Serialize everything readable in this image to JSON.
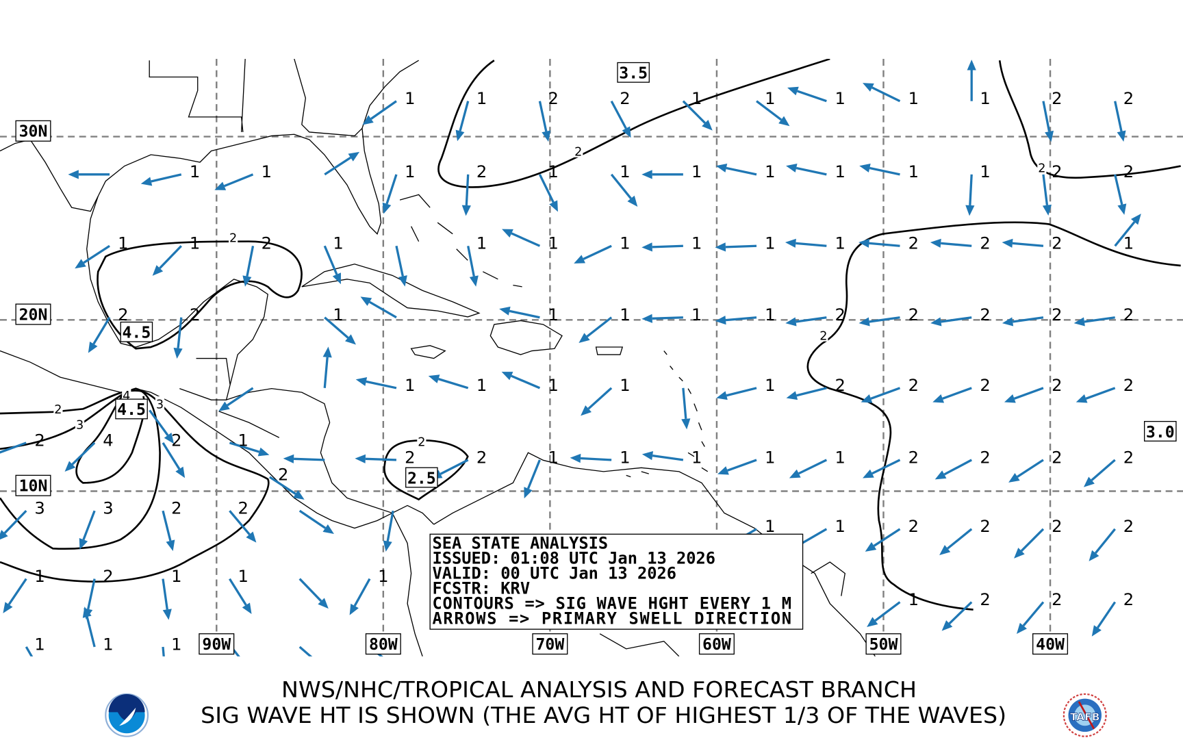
{
  "map": {
    "lon_labels": [
      {
        "lon": -90,
        "text": "90W"
      },
      {
        "lon": -80,
        "text": "80W"
      },
      {
        "lon": -70,
        "text": "70W"
      },
      {
        "lon": -60,
        "text": "60W"
      },
      {
        "lon": -50,
        "text": "50W"
      },
      {
        "lon": -40,
        "text": "40W"
      }
    ],
    "lat_labels": [
      {
        "lat": 30,
        "text": "30N"
      },
      {
        "lat": 20,
        "text": "20N"
      },
      {
        "lat": 10,
        "text": "10N"
      }
    ],
    "contour_boxed_labels": [
      {
        "text": "3.5",
        "lon": -65.0,
        "lat": 33.5
      },
      {
        "text": "4.5",
        "lon": -94.8,
        "lat": 19.3
      },
      {
        "text": "4.5",
        "lon": -95.1,
        "lat": 14.8
      },
      {
        "text": "2.5",
        "lon": -77.7,
        "lat": 10.8
      },
      {
        "text": "3.0",
        "lon": -33.4,
        "lat": 13.5
      }
    ],
    "contour_inline_labels": [
      {
        "text": "2",
        "lon": -68.3,
        "lat": 29.2
      },
      {
        "text": "2",
        "lon": -89.0,
        "lat": 24.5
      },
      {
        "text": "2",
        "lon": -99.5,
        "lat": 14.8
      },
      {
        "text": "3",
        "lon": -98.2,
        "lat": 13.9
      },
      {
        "text": "4",
        "lon": -95.4,
        "lat": 15.6
      },
      {
        "text": "3",
        "lon": -93.4,
        "lat": 15.1
      },
      {
        "text": "2",
        "lon": -40.5,
        "lat": 28.3
      },
      {
        "text": "2",
        "lon": -53.6,
        "lat": 19.1
      },
      {
        "text": "2",
        "lon": -77.7,
        "lat": 12.9
      }
    ],
    "colors": {
      "arrow": "#1f77b4",
      "contour": "#000000",
      "grid": "#808080"
    },
    "wave_points": [
      {
        "lat": 32.1,
        "cells": [
          {
            "lon": -78.4,
            "h": "1",
            "dir": 235
          },
          {
            "lon": -74.1,
            "h": "1",
            "dir": 195
          },
          {
            "lon": -69.8,
            "h": "2",
            "dir": 168
          },
          {
            "lon": -65.5,
            "h": "2",
            "dir": 152
          },
          {
            "lon": -61.2,
            "h": "1",
            "dir": 135
          },
          {
            "lon": -56.8,
            "h": "1",
            "dir": 127
          },
          {
            "lon": -52.6,
            "h": "1",
            "dir": 289
          },
          {
            "lon": -48.2,
            "h": "1",
            "dir": 296
          },
          {
            "lon": -43.9,
            "h": "1",
            "dir": 0
          },
          {
            "lon": -39.6,
            "h": "2",
            "dir": 169
          },
          {
            "lon": -35.3,
            "h": "2",
            "dir": 168
          }
        ]
      },
      {
        "lat": 28.1,
        "cells": [
          {
            "lon": -95.6,
            "h": "",
            "dir": 270
          },
          {
            "lon": -91.3,
            "h": "1",
            "dir": 257
          },
          {
            "lon": -87.0,
            "h": "1",
            "dir": 248
          },
          {
            "lon": -82.7,
            "h": "",
            "dir": 57
          },
          {
            "lon": -78.4,
            "h": "1",
            "dir": 198
          },
          {
            "lon": -74.1,
            "h": "2",
            "dir": 183
          },
          {
            "lon": -69.8,
            "h": "1",
            "dir": 154
          },
          {
            "lon": -65.5,
            "h": "1",
            "dir": 141
          },
          {
            "lon": -61.2,
            "h": "1",
            "dir": 270
          },
          {
            "lon": -56.8,
            "h": "1",
            "dir": 282
          },
          {
            "lon": -52.6,
            "h": "1",
            "dir": 282
          },
          {
            "lon": -48.2,
            "h": "1",
            "dir": 282
          },
          {
            "lon": -43.9,
            "h": "1",
            "dir": 183
          },
          {
            "lon": -39.6,
            "h": "2",
            "dir": 173
          },
          {
            "lon": -35.3,
            "h": "2",
            "dir": 167
          }
        ]
      },
      {
        "lat": 24.2,
        "cells": [
          {
            "lon": -95.6,
            "h": "1",
            "dir": 237
          },
          {
            "lon": -91.3,
            "h": "1",
            "dir": 224
          },
          {
            "lon": -87.0,
            "h": "2",
            "dir": 191
          },
          {
            "lon": -82.7,
            "h": "1",
            "dir": 157
          },
          {
            "lon": -78.4,
            "h": "",
            "dir": 168
          },
          {
            "lon": -74.1,
            "h": "1",
            "dir": 169
          },
          {
            "lon": -69.8,
            "h": "1",
            "dir": 294
          },
          {
            "lon": -65.5,
            "h": "1",
            "dir": 245
          },
          {
            "lon": -61.2,
            "h": "1",
            "dir": 268
          },
          {
            "lon": -56.8,
            "h": "1",
            "dir": 268
          },
          {
            "lon": -52.6,
            "h": "1",
            "dir": 275
          },
          {
            "lon": -48.2,
            "h": "2",
            "dir": 275
          },
          {
            "lon": -43.9,
            "h": "2",
            "dir": 275
          },
          {
            "lon": -39.6,
            "h": "2",
            "dir": 275
          },
          {
            "lon": -35.3,
            "h": "1",
            "dir": 39
          }
        ]
      },
      {
        "lat": 20.3,
        "cells": [
          {
            "lon": -95.6,
            "h": "2",
            "dir": 211
          },
          {
            "lon": -91.3,
            "h": "2",
            "dir": 186
          },
          {
            "lon": -82.7,
            "h": "1",
            "dir": 131
          },
          {
            "lon": -78.4,
            "h": "",
            "dir": 300
          },
          {
            "lon": -69.8,
            "h": "1",
            "dir": 282
          },
          {
            "lon": -65.5,
            "h": "1",
            "dir": 232
          },
          {
            "lon": -61.2,
            "h": "1",
            "dir": 268
          },
          {
            "lon": -56.8,
            "h": "1",
            "dir": 265
          },
          {
            "lon": -52.6,
            "h": "2",
            "dir": 262
          },
          {
            "lon": -48.2,
            "h": "2",
            "dir": 262
          },
          {
            "lon": -43.9,
            "h": "2",
            "dir": 262
          },
          {
            "lon": -39.6,
            "h": "2",
            "dir": 262
          },
          {
            "lon": -35.3,
            "h": "2",
            "dir": 262
          }
        ]
      },
      {
        "lat": 16.2,
        "cells": [
          {
            "lon": -87.0,
            "h": "",
            "dir": 236
          },
          {
            "lon": -82.7,
            "h": "",
            "dir": 5
          },
          {
            "lon": -78.4,
            "h": "1",
            "dir": 282
          },
          {
            "lon": -74.1,
            "h": "1",
            "dir": 287
          },
          {
            "lon": -69.8,
            "h": "1",
            "dir": 293
          },
          {
            "lon": -65.5,
            "h": "1",
            "dir": 228
          },
          {
            "lon": -61.2,
            "h": "",
            "dir": 175
          },
          {
            "lon": -56.8,
            "h": "1",
            "dir": 256
          },
          {
            "lon": -52.6,
            "h": "2",
            "dir": 256
          },
          {
            "lon": -48.2,
            "h": "2",
            "dir": 250
          },
          {
            "lon": -43.9,
            "h": "2",
            "dir": 250
          },
          {
            "lon": -39.6,
            "h": "2",
            "dir": 250
          },
          {
            "lon": -35.3,
            "h": "2",
            "dir": 250
          }
        ]
      },
      {
        "lat": 14.9,
        "cells": [
          {
            "lon": -93.2,
            "h": "",
            "dir": 144
          }
        ]
      },
      {
        "lat": 13.0,
        "cells": [
          {
            "lon": -100.6,
            "h": "2",
            "dir": 250
          },
          {
            "lon": -96.5,
            "h": "4",
            "dir": 226
          },
          {
            "lon": -92.4,
            "h": "2",
            "dir": 148
          },
          {
            "lon": -88.4,
            "h": "1",
            "dir": 107
          }
        ]
      },
      {
        "lat": 12.0,
        "cells": [
          {
            "lon": -82.7,
            "h": "",
            "dir": 272
          },
          {
            "lon": -78.4,
            "h": "2",
            "dir": 272
          },
          {
            "lon": -74.1,
            "h": "2",
            "dir": 243
          },
          {
            "lon": -69.8,
            "h": "1",
            "dir": 202
          },
          {
            "lon": -65.5,
            "h": "1",
            "dir": 273
          },
          {
            "lon": -61.2,
            "h": "1",
            "dir": 278
          },
          {
            "lon": -56.8,
            "h": "1",
            "dir": 250
          },
          {
            "lon": -52.6,
            "h": "1",
            "dir": 244
          },
          {
            "lon": -48.2,
            "h": "2",
            "dir": 244
          },
          {
            "lon": -43.9,
            "h": "2",
            "dir": 242
          },
          {
            "lon": -39.6,
            "h": "2",
            "dir": 237
          },
          {
            "lon": -35.3,
            "h": "2",
            "dir": 229
          }
        ]
      },
      {
        "lat": 11.0,
        "cells": [
          {
            "lon": -86.0,
            "h": "2",
            "dir": 123
          }
        ]
      },
      {
        "lat": 9.0,
        "cells": [
          {
            "lon": -100.6,
            "h": "3",
            "dir": 224
          },
          {
            "lon": -96.5,
            "h": "3",
            "dir": 201
          },
          {
            "lon": -92.4,
            "h": "2",
            "dir": 166
          },
          {
            "lon": -88.4,
            "h": "2",
            "dir": 140
          },
          {
            "lon": -84.2,
            "h": "",
            "dir": 124
          },
          {
            "lon": -78.6,
            "h": "",
            "dir": 190
          }
        ]
      },
      {
        "lat": 7.9,
        "cells": [
          {
            "lon": -56.8,
            "h": "1",
            "dir": 240
          },
          {
            "lon": -52.6,
            "h": "1",
            "dir": 240
          },
          {
            "lon": -48.2,
            "h": "2",
            "dir": 237
          },
          {
            "lon": -43.9,
            "h": "2",
            "dir": 231
          },
          {
            "lon": -39.6,
            "h": "2",
            "dir": 225
          },
          {
            "lon": -35.3,
            "h": "2",
            "dir": 219
          }
        ]
      },
      {
        "lat": 4.9,
        "cells": [
          {
            "lon": -100.6,
            "h": "1",
            "dir": 214
          },
          {
            "lon": -96.5,
            "h": "2",
            "dir": 192
          },
          {
            "lon": -92.4,
            "h": "1",
            "dir": 172
          },
          {
            "lon": -88.4,
            "h": "1",
            "dir": 148
          },
          {
            "lon": -84.2,
            "h": "",
            "dir": 136
          },
          {
            "lon": -80.0,
            "h": "1",
            "dir": 209
          }
        ]
      },
      {
        "lat": 3.5,
        "cells": [
          {
            "lon": -48.2,
            "h": "1",
            "dir": 233
          },
          {
            "lon": -43.9,
            "h": "2",
            "dir": 226
          },
          {
            "lon": -39.6,
            "h": "2",
            "dir": 220
          },
          {
            "lon": -35.3,
            "h": "2",
            "dir": 214
          }
        ]
      },
      {
        "lat": 0.8,
        "cells": [
          {
            "lon": -100.6,
            "h": "1",
            "dir": 150
          },
          {
            "lon": -96.5,
            "h": "1",
            "dir": 346
          },
          {
            "lon": -92.4,
            "h": "1",
            "dir": 175
          },
          {
            "lon": -88.3,
            "h": "",
            "dir": 142
          },
          {
            "lon": -84.2,
            "h": "",
            "dir": 131
          },
          {
            "lon": -80.0,
            "h": "",
            "dir": 129
          }
        ]
      }
    ]
  },
  "info_box": {
    "lines": [
      "SEA STATE ANALYSIS",
      "ISSUED: 01:08 UTC Jan 13 2026",
      "VALID: 00 UTC Jan 13 2026",
      "FCSTR: KRV",
      "CONTOURS => SIG WAVE HGHT EVERY 1 M",
      "ARROWS   => PRIMARY SWELL DIRECTION"
    ]
  },
  "footer": {
    "title_line1": "NWS/NHC/TROPICAL ANALYSIS AND FORECAST BRANCH",
    "title_line2": "SIG WAVE HT IS SHOWN (THE AVG HT OF HIGHEST 1/3 OF THE WAVES)",
    "logo_left": "NOAA",
    "logo_right": "TAFB"
  }
}
